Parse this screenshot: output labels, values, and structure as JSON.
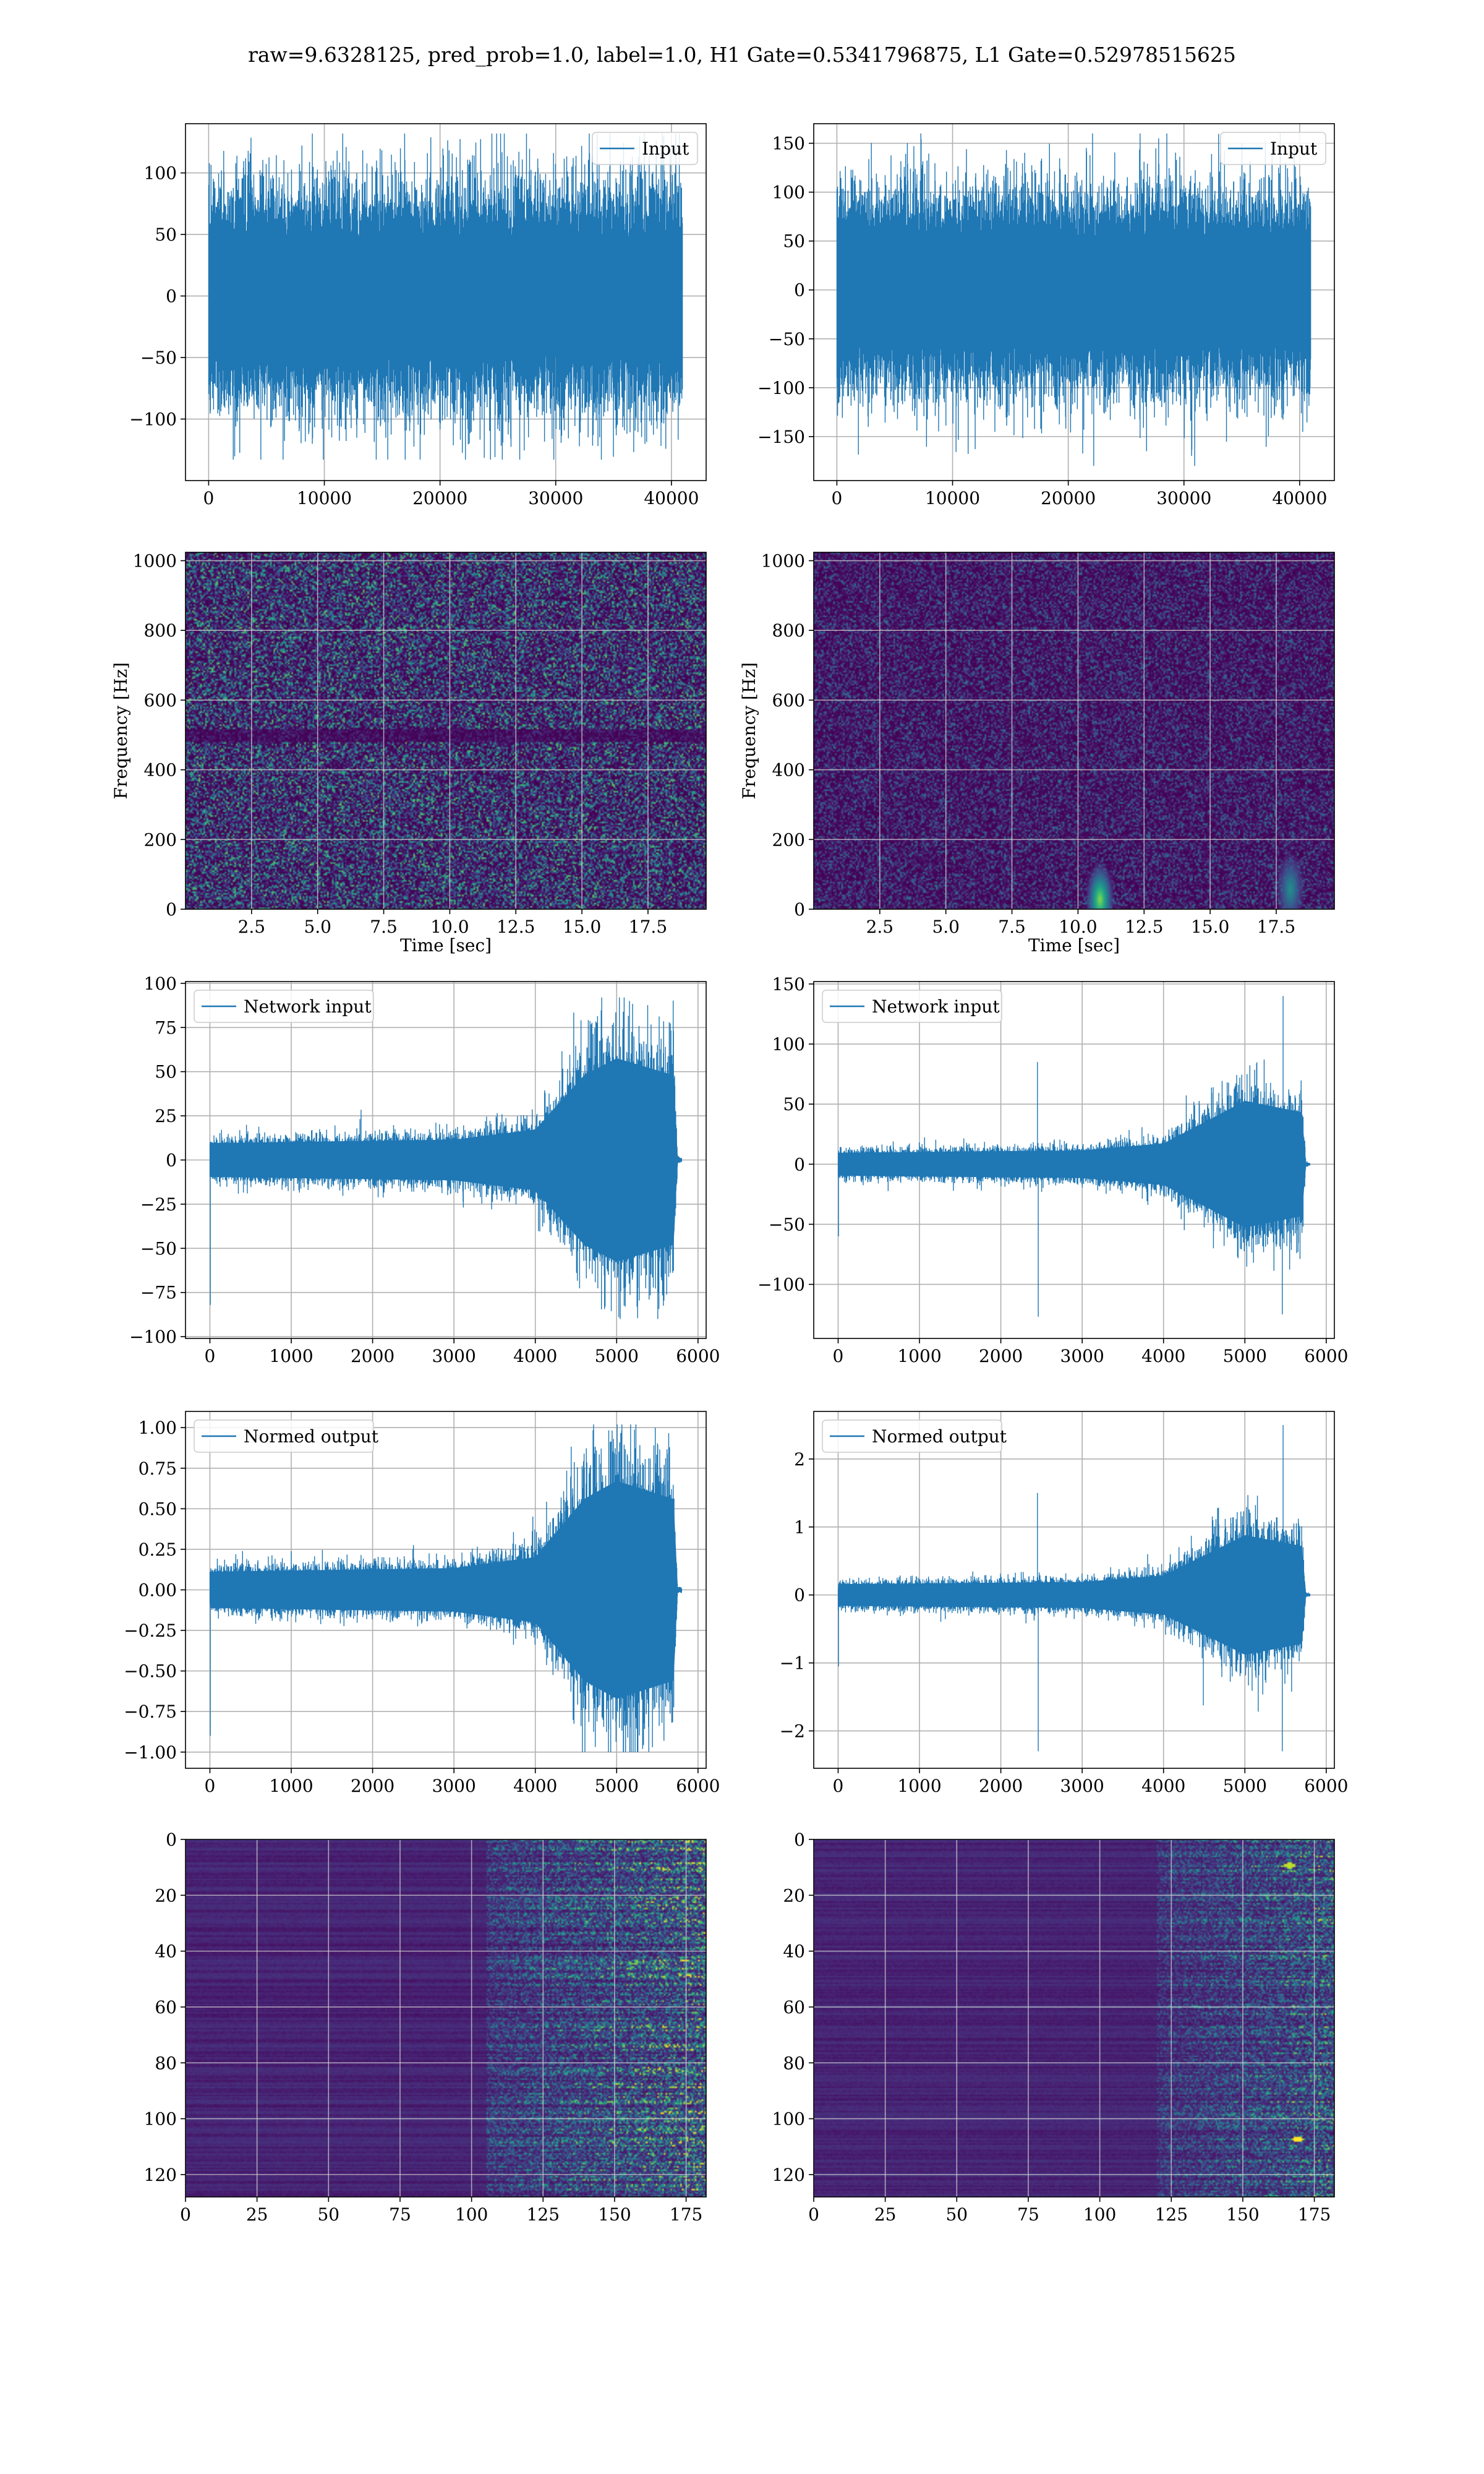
{
  "figure_title": "raw=9.6328125, pred_prob=1.0, label=1.0, H1 Gate=0.5341796875, L1 Gate=0.52978515625",
  "colors": {
    "line": "#1f77b4",
    "grid": "#b0b0b0",
    "viridis_dark": "#440154",
    "viridis_mid": "#3b528b",
    "viridis_teal": "#21918c",
    "viridis_green": "#5ec962",
    "viridis_yellow": "#fde725"
  },
  "chart_data": [
    {
      "id": "h1-input",
      "type": "line",
      "series": [
        {
          "name": "Input"
        }
      ],
      "x": {
        "range": [
          -2000,
          43000
        ],
        "ticks": [
          0,
          10000,
          20000,
          30000,
          40000
        ]
      },
      "y": {
        "range": [
          -150,
          140
        ],
        "ticks": [
          -100,
          -50,
          0,
          50,
          100
        ]
      },
      "xlabel": "",
      "ylabel": "",
      "grid": true,
      "legend": "top-right",
      "signal": {
        "n": 40960,
        "std": 30,
        "peak_min": -133,
        "peak_max": 132,
        "envelope": [
          [
            0,
            1
          ],
          [
            1,
            1
          ]
        ],
        "spikes": []
      }
    },
    {
      "id": "l1-input",
      "type": "line",
      "series": [
        {
          "name": "Input"
        }
      ],
      "x": {
        "range": [
          -2000,
          43000
        ],
        "ticks": [
          0,
          10000,
          20000,
          30000,
          40000
        ]
      },
      "y": {
        "range": [
          -195,
          170
        ],
        "ticks": [
          -150,
          -100,
          -50,
          0,
          50,
          100,
          150
        ]
      },
      "xlabel": "",
      "ylabel": "",
      "grid": true,
      "legend": "top-right",
      "signal": {
        "n": 40960,
        "std": 34,
        "peak_min": -180,
        "peak_max": 160,
        "envelope": [
          [
            0,
            1
          ],
          [
            1,
            1
          ]
        ],
        "spikes": [
          [
            22200,
            -180
          ],
          [
            22100,
            160
          ]
        ]
      }
    },
    {
      "id": "h1-spectrogram",
      "type": "heatmap",
      "x": {
        "range": [
          0,
          19.7
        ],
        "ticks": [
          2.5,
          5.0,
          7.5,
          10.0,
          12.5,
          15.0,
          17.5
        ]
      },
      "y": {
        "range": [
          0,
          1024
        ],
        "ticks": [
          0,
          200,
          400,
          600,
          800,
          1000
        ]
      },
      "xlabel": "Time [sec]",
      "ylabel": "Frequency [Hz]",
      "grid": true,
      "field": {
        "mode": "noise",
        "intensity": 0.55,
        "dark_band_hz": 500,
        "hotspots": []
      }
    },
    {
      "id": "l1-spectrogram",
      "type": "heatmap",
      "x": {
        "range": [
          0,
          19.7
        ],
        "ticks": [
          2.5,
          5.0,
          7.5,
          10.0,
          12.5,
          15.0,
          17.5
        ]
      },
      "y": {
        "range": [
          0,
          1024
        ],
        "ticks": [
          0,
          200,
          400,
          600,
          800,
          1000
        ]
      },
      "xlabel": "Time [sec]",
      "ylabel": "Frequency [Hz]",
      "grid": true,
      "field": {
        "mode": "noise",
        "intensity": 0.28,
        "dark_band_hz": null,
        "hotspots": [
          [
            10.8,
            30,
            1.0
          ],
          [
            18.0,
            60,
            0.6
          ]
        ]
      }
    },
    {
      "id": "h1-network-input",
      "type": "line",
      "series": [
        {
          "name": "Network input"
        }
      ],
      "x": {
        "range": [
          -300,
          6100
        ],
        "ticks": [
          0,
          1000,
          2000,
          3000,
          4000,
          5000,
          6000
        ]
      },
      "y": {
        "range": [
          -101,
          101
        ],
        "ticks": [
          -100,
          -75,
          -50,
          -25,
          0,
          25,
          50,
          75,
          100
        ]
      },
      "xlabel": "",
      "ylabel": "",
      "grid": true,
      "legend": "top-left",
      "signal": {
        "n": 5800,
        "std": 6,
        "peak_min": -90,
        "peak_max": 92,
        "envelope": [
          [
            0,
            1.0
          ],
          [
            3000,
            1.2
          ],
          [
            4000,
            1.8
          ],
          [
            4600,
            5.0
          ],
          [
            5000,
            6.0
          ],
          [
            5700,
            5.0
          ],
          [
            5750,
            0.15
          ],
          [
            5800,
            0.1
          ]
        ],
        "spikes": [
          [
            5,
            -82
          ]
        ]
      }
    },
    {
      "id": "l1-network-input",
      "type": "line",
      "series": [
        {
          "name": "Network input"
        }
      ],
      "x": {
        "range": [
          -300,
          6100
        ],
        "ticks": [
          0,
          1000,
          2000,
          3000,
          4000,
          5000,
          6000
        ]
      },
      "y": {
        "range": [
          -145,
          152
        ],
        "ticks": [
          -100,
          -50,
          0,
          50,
          100,
          150
        ]
      },
      "xlabel": "",
      "ylabel": "",
      "grid": true,
      "legend": "top-left",
      "signal": {
        "n": 5800,
        "std": 6,
        "peak_min": -125,
        "peak_max": 140,
        "envelope": [
          [
            0,
            1.0
          ],
          [
            3000,
            1.2
          ],
          [
            4000,
            1.8
          ],
          [
            4600,
            4.0
          ],
          [
            5000,
            5.5
          ],
          [
            5700,
            4.5
          ],
          [
            5750,
            0.15
          ],
          [
            5800,
            0.1
          ]
        ],
        "spikes": [
          [
            5,
            -60
          ],
          [
            2450,
            85
          ],
          [
            2460,
            -127
          ],
          [
            5470,
            140
          ],
          [
            5460,
            -125
          ]
        ]
      }
    },
    {
      "id": "h1-normed-output",
      "type": "line",
      "series": [
        {
          "name": "Normed output"
        }
      ],
      "x": {
        "range": [
          -300,
          6100
        ],
        "ticks": [
          0,
          1000,
          2000,
          3000,
          4000,
          5000,
          6000
        ]
      },
      "y": {
        "range": [
          -1.1,
          1.1
        ],
        "ticks": [
          -1.0,
          -0.75,
          -0.5,
          -0.25,
          0.0,
          0.25,
          0.5,
          0.75,
          1.0
        ]
      },
      "xlabel": "",
      "ylabel": "",
      "grid": true,
      "legend": "top-left",
      "signal": {
        "n": 5800,
        "std": 0.07,
        "peak_min": -1.0,
        "peak_max": 1.02,
        "envelope": [
          [
            0,
            1.0
          ],
          [
            3000,
            1.2
          ],
          [
            4000,
            1.8
          ],
          [
            4600,
            5.0
          ],
          [
            5000,
            6.0
          ],
          [
            5700,
            5.0
          ],
          [
            5750,
            0.15
          ],
          [
            5800,
            0.1
          ]
        ],
        "spikes": [
          [
            5,
            -0.9
          ]
        ]
      }
    },
    {
      "id": "l1-normed-output",
      "type": "line",
      "series": [
        {
          "name": "Normed output"
        }
      ],
      "x": {
        "range": [
          -300,
          6100
        ],
        "ticks": [
          0,
          1000,
          2000,
          3000,
          4000,
          5000,
          6000
        ]
      },
      "y": {
        "range": [
          -2.55,
          2.7
        ],
        "ticks": [
          -2,
          -1,
          0,
          1,
          2
        ]
      },
      "xlabel": "",
      "ylabel": "",
      "grid": true,
      "legend": "top-left",
      "signal": {
        "n": 5800,
        "std": 0.1,
        "peak_min": -2.3,
        "peak_max": 2.5,
        "envelope": [
          [
            0,
            1.0
          ],
          [
            3000,
            1.2
          ],
          [
            4000,
            1.8
          ],
          [
            4600,
            4.0
          ],
          [
            5000,
            5.5
          ],
          [
            5700,
            4.5
          ],
          [
            5750,
            0.15
          ],
          [
            5800,
            0.1
          ]
        ],
        "spikes": [
          [
            5,
            -1.05
          ],
          [
            2450,
            1.5
          ],
          [
            2460,
            -2.3
          ],
          [
            5470,
            2.5
          ],
          [
            5460,
            -2.3
          ]
        ]
      }
    },
    {
      "id": "h1-feature-map",
      "type": "heatmap",
      "x": {
        "range": [
          0,
          182
        ],
        "ticks": [
          0,
          25,
          50,
          75,
          100,
          125,
          150,
          175
        ]
      },
      "y": {
        "range": [
          0,
          128
        ],
        "ticks": [
          0,
          20,
          40,
          60,
          80,
          100,
          120
        ],
        "inverted": true
      },
      "xlabel": "",
      "ylabel": "",
      "grid": true,
      "field": {
        "mode": "feature",
        "onset_col": 105,
        "intensity": 0.75,
        "hotspots": []
      }
    },
    {
      "id": "l1-feature-map",
      "type": "heatmap",
      "x": {
        "range": [
          0,
          182
        ],
        "ticks": [
          0,
          25,
          50,
          75,
          100,
          125,
          150,
          175
        ]
      },
      "y": {
        "range": [
          0,
          128
        ],
        "ticks": [
          0,
          20,
          40,
          60,
          80,
          100,
          120
        ],
        "inverted": true
      },
      "xlabel": "",
      "ylabel": "",
      "grid": true,
      "field": {
        "mode": "feature",
        "onset_col": 120,
        "intensity": 0.6,
        "hotspots": [
          [
            169,
            107,
            1.0
          ],
          [
            166,
            9,
            0.9
          ]
        ]
      }
    }
  ]
}
